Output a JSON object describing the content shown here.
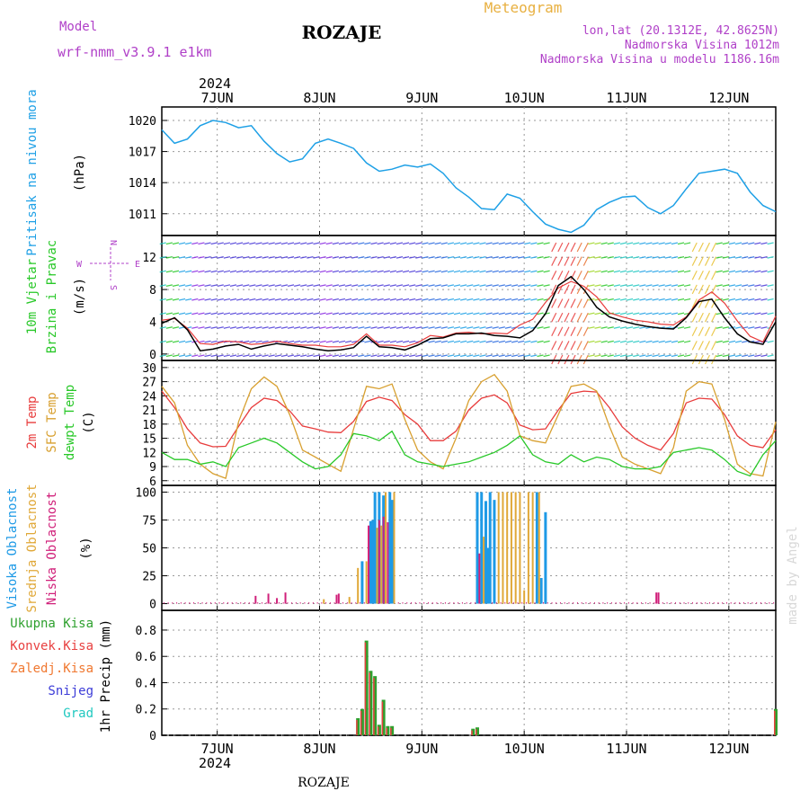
{
  "header": {
    "model_label": "Model",
    "model_name": "wrf-nmm_v3.9.1 e1km",
    "station": "ROZAJE",
    "chart_kind": "Meteogram",
    "lonlat": "lon,lat (20.1312E, 42.8625N)",
    "elevation": "Nadmorska Visina 1012m",
    "model_elevation": "Nadmorska Visina u modelu 1186.16m",
    "year": "2024",
    "footer_station": "ROZAJE",
    "watermark": "made by Angel"
  },
  "colors": {
    "pressure": "#1ea0e6",
    "temp2m": "#e83c3c",
    "sfc": "#d8a030",
    "dewpt": "#28c828",
    "high_cloud": "#1e9ae6",
    "mid_cloud": "#e0a838",
    "low_cloud": "#d0207a",
    "total_precip": "#2ea02e",
    "conv_precip": "#e84040",
    "frozen_precip": "#f07830",
    "snow": "#3c3cd8",
    "graupel": "#20c8c0",
    "purple_text": "#b040c8",
    "orange_text": "#e8b040"
  },
  "chart_data": [
    {
      "type": "line",
      "panel": "pressure",
      "ylabel_1": "Pritisak na nivou mora",
      "ylabel_2": "(hPa)",
      "ylim": [
        1008.9,
        1021.3
      ],
      "yticks": [
        "1011",
        "1014",
        "1017",
        "1020"
      ],
      "xticks": [
        "7JUN",
        "8JUN",
        "9JUN",
        "10JUN",
        "11JUN",
        "12JUN"
      ],
      "grid": true,
      "x_hours": [
        0,
        3,
        6,
        9,
        12,
        15,
        18,
        21,
        24,
        27,
        30,
        33,
        36,
        39,
        42,
        45,
        48,
        51,
        54,
        57,
        60,
        63,
        66,
        69,
        72,
        75,
        78,
        81,
        84,
        87,
        90,
        93,
        96,
        99,
        102,
        105,
        108,
        111,
        114,
        117,
        120,
        123,
        126,
        129,
        132,
        135,
        138,
        141,
        144
      ],
      "series": [
        {
          "values": [
            1019.1,
            1017.8,
            1018.2,
            1019.5,
            1020.0,
            1019.8,
            1019.3,
            1019.5,
            1018.0,
            1016.8,
            1016.0,
            1016.3,
            1017.8,
            1018.2,
            1017.8,
            1017.3,
            1015.9,
            1015.1,
            1015.3,
            1015.7,
            1015.5,
            1015.8,
            1014.9,
            1013.5,
            1012.6,
            1011.5,
            1011.4,
            1012.9,
            1012.5,
            1011.2,
            1010.0,
            1009.5,
            1009.2,
            1009.9,
            1011.4,
            1012.1,
            1012.6,
            1012.7,
            1011.6,
            1011.0,
            1011.8,
            1013.4,
            1014.9,
            1015.1,
            1015.3,
            1014.9,
            1013.1,
            1011.8,
            1011.2
          ]
        }
      ]
    },
    {
      "type": "line",
      "panel": "wind",
      "ylabel_1": "10m Vjetar",
      "ylabel_2": "Brzina i Pravac",
      "ylabel_3": "(m/s)",
      "ylim": [
        -0.8,
        14.7
      ],
      "yticks": [
        "0",
        "4",
        "8",
        "12"
      ],
      "compass": {
        "n": "N",
        "s": "S",
        "e": "E",
        "w": "W"
      },
      "grid": true,
      "x_hours": [
        0,
        3,
        6,
        9,
        12,
        15,
        18,
        21,
        24,
        27,
        30,
        33,
        36,
        39,
        42,
        45,
        48,
        51,
        54,
        57,
        60,
        63,
        66,
        69,
        72,
        75,
        78,
        81,
        84,
        87,
        90,
        93,
        96,
        99,
        102,
        105,
        108,
        111,
        114,
        117,
        120,
        123,
        126,
        129,
        132,
        135,
        138,
        141,
        144
      ],
      "series": [
        {
          "values": [
            3.8,
            4.5,
            3.0,
            0.4,
            0.6,
            1.0,
            1.2,
            0.6,
            1.0,
            1.3,
            1.1,
            0.9,
            0.6,
            0.4,
            0.5,
            0.8,
            2.2,
            0.9,
            0.8,
            0.5,
            1.1,
            1.9,
            2.0,
            2.5,
            2.5,
            2.6,
            2.3,
            2.2,
            2.0,
            2.9,
            5.0,
            8.5,
            9.6,
            8.0,
            5.8,
            4.6,
            4.1,
            3.7,
            3.4,
            3.2,
            3.1,
            4.5,
            6.5,
            6.8,
            4.5,
            2.5,
            1.5,
            1.2,
            4.0
          ]
        },
        {
          "values": [
            4.2,
            4.4,
            3.2,
            1.3,
            1.2,
            1.6,
            1.5,
            1.2,
            1.3,
            1.6,
            1.3,
            1.1,
            1.1,
            0.9,
            0.9,
            1.2,
            2.5,
            1.1,
            1.1,
            0.9,
            1.4,
            2.3,
            2.1,
            2.6,
            2.7,
            2.5,
            2.6,
            2.5,
            3.6,
            4.3,
            6.4,
            8.2,
            9.0,
            8.4,
            7.1,
            5.1,
            4.6,
            4.2,
            4.0,
            3.7,
            3.6,
            4.6,
            6.7,
            7.7,
            6.3,
            4.1,
            2.2,
            1.5,
            4.7
          ]
        }
      ]
    },
    {
      "type": "line",
      "panel": "temperature",
      "ylabel_1": "2m Temp",
      "ylabel_2": "SFC Temp",
      "ylabel_3": "dewpt Temp",
      "ylabel_4": "(C)",
      "ylim": [
        5,
        31.5
      ],
      "yticks": [
        "6",
        "9",
        "12",
        "15",
        "18",
        "21",
        "24",
        "27",
        "30"
      ],
      "grid": true,
      "x_hours": [
        0,
        3,
        6,
        9,
        12,
        15,
        18,
        21,
        24,
        27,
        30,
        33,
        36,
        39,
        42,
        45,
        48,
        51,
        54,
        57,
        60,
        63,
        66,
        69,
        72,
        75,
        78,
        81,
        84,
        87,
        90,
        93,
        96,
        99,
        102,
        105,
        108,
        111,
        114,
        117,
        120,
        123,
        126,
        129,
        132,
        135,
        138,
        141,
        144
      ],
      "series": [
        {
          "name": "2m Temp",
          "values": [
            25.0,
            21.5,
            17.0,
            14.0,
            13.2,
            13.3,
            17.5,
            21.5,
            23.5,
            23.0,
            20.8,
            17.6,
            17.0,
            16.3,
            16.2,
            18.6,
            22.8,
            23.7,
            23.0,
            20.0,
            18.0,
            14.5,
            14.5,
            16.5,
            21.0,
            23.5,
            24.2,
            22.5,
            17.8,
            16.8,
            17.0,
            21.0,
            24.5,
            25.0,
            24.8,
            21.5,
            17.4,
            15.0,
            13.5,
            12.5,
            16.0,
            22.5,
            23.5,
            23.3,
            20.0,
            15.5,
            13.5,
            13.0,
            16.8
          ]
        },
        {
          "name": "SFC Temp",
          "values": [
            26.0,
            22.5,
            13.5,
            9.5,
            7.5,
            6.5,
            18.5,
            25.5,
            28.0,
            26.0,
            20.0,
            12.5,
            11.0,
            9.5,
            8.0,
            17.0,
            26.0,
            25.5,
            26.5,
            19.0,
            12.5,
            10.0,
            8.5,
            15.0,
            23.0,
            27.0,
            28.5,
            25.0,
            15.5,
            14.5,
            14.0,
            20.0,
            26.0,
            26.5,
            25.0,
            17.5,
            11.0,
            9.5,
            8.5,
            7.5,
            13.0,
            25.0,
            27.0,
            26.5,
            19.0,
            9.5,
            7.5,
            7.0,
            18.5
          ]
        },
        {
          "name": "dewpt Temp",
          "values": [
            12.0,
            10.5,
            10.5,
            9.5,
            10.0,
            9.0,
            13.0,
            14.0,
            15.0,
            14.0,
            12.0,
            10.0,
            8.5,
            9.0,
            11.5,
            16.0,
            15.5,
            14.5,
            16.5,
            11.5,
            10.0,
            9.5,
            9.0,
            9.5,
            10.0,
            11.0,
            12.0,
            13.5,
            15.5,
            11.5,
            10.0,
            9.5,
            11.5,
            10.0,
            11.0,
            10.5,
            9.0,
            8.5,
            8.5,
            9.0,
            12.0,
            12.5,
            13.0,
            12.5,
            10.5,
            8.0,
            7.0,
            11.5,
            14.5
          ]
        }
      ]
    },
    {
      "type": "bar",
      "panel": "clouds",
      "ylabel_1": "Visoka Oblacnost",
      "ylabel_2": "Srednja Oblacnost",
      "ylabel_3": "Niska Oblacnost",
      "ylabel_4": "(%)",
      "ylim": [
        -6,
        106
      ],
      "yticks": [
        "0",
        "25",
        "50",
        "75",
        "100"
      ],
      "grid": true,
      "series": [
        {
          "name": "Visoka Oblacnost",
          "x_hours": [
            47,
            49,
            49.5,
            50,
            51,
            52,
            53.5,
            54,
            74,
            75,
            76,
            76.5,
            77,
            78,
            88,
            89,
            90
          ],
          "values": [
            38,
            74,
            75,
            100,
            100,
            97,
            100,
            93,
            100,
            100,
            92,
            50,
            100,
            93,
            100,
            23,
            82
          ]
        },
        {
          "name": "Srednja Oblacnost",
          "x_hours": [
            38,
            44,
            46,
            48,
            50.5,
            51.5,
            52.5,
            54.5,
            75.5,
            79,
            80,
            81,
            82,
            83,
            84,
            85,
            86,
            87,
            88.5
          ],
          "values": [
            4,
            6,
            32,
            38,
            68,
            70,
            100,
            100,
            60,
            100,
            100,
            100,
            100,
            100,
            100,
            12,
            100,
            100,
            100
          ]
        },
        {
          "name": "Niska Oblacnost",
          "x_hours": [
            22,
            25,
            27,
            29,
            41,
            41.5,
            48.5,
            51,
            52,
            53,
            74.5,
            116,
            116.5
          ],
          "values": [
            7,
            9,
            5,
            10,
            8,
            9,
            70,
            75,
            78,
            73,
            45,
            10,
            10
          ]
        }
      ]
    },
    {
      "type": "bar",
      "panel": "precipitation",
      "ylabel_1": "1hr Precip (mm)",
      "legend": [
        "Ukupna Kisa",
        "Konvek.Kisa",
        "Zaledj.Kisa",
        "Snijeg",
        "Grad"
      ],
      "ylim": [
        0,
        0.95
      ],
      "yticks": [
        "0",
        "0.2",
        "0.4",
        "0.6",
        "0.8"
      ],
      "grid": true,
      "series": [
        {
          "name": "Ukupna Kisa",
          "x_hours": [
            46,
            47,
            48,
            49,
            50,
            51,
            52,
            53,
            54,
            73,
            74,
            144
          ],
          "values": [
            0.13,
            0.2,
            0.72,
            0.49,
            0.45,
            0.08,
            0.27,
            0.07,
            0.07,
            0.05,
            0.06,
            0.2
          ]
        }
      ]
    }
  ]
}
